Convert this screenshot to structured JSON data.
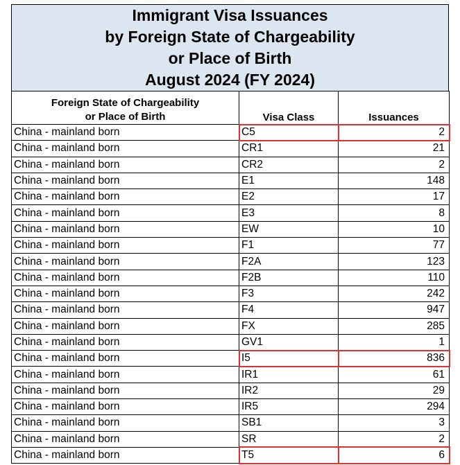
{
  "title": {
    "line1": "Immigrant Visa Issuances",
    "line2": "by Foreign State of Chargeability",
    "line3": "or Place of Birth",
    "line4": "August 2024 (FY 2024)"
  },
  "headers": {
    "country_line1": "Foreign State of Chargeability",
    "country_line2": "or Place of Birth",
    "visa_class": "Visa Class",
    "issuances": "Issuances"
  },
  "highlight_color": "#e03030",
  "rows": [
    {
      "country": "China - mainland born",
      "visa_class": "C5",
      "issuances": "2",
      "highlighted": true
    },
    {
      "country": "China - mainland born",
      "visa_class": "CR1",
      "issuances": "21",
      "highlighted": false
    },
    {
      "country": "China - mainland born",
      "visa_class": "CR2",
      "issuances": "2",
      "highlighted": false
    },
    {
      "country": "China - mainland born",
      "visa_class": "E1",
      "issuances": "148",
      "highlighted": false
    },
    {
      "country": "China - mainland born",
      "visa_class": "E2",
      "issuances": "17",
      "highlighted": false
    },
    {
      "country": "China - mainland born",
      "visa_class": "E3",
      "issuances": "8",
      "highlighted": false
    },
    {
      "country": "China - mainland born",
      "visa_class": "EW",
      "issuances": "10",
      "highlighted": false
    },
    {
      "country": "China - mainland born",
      "visa_class": "F1",
      "issuances": "77",
      "highlighted": false
    },
    {
      "country": "China - mainland born",
      "visa_class": "F2A",
      "issuances": "123",
      "highlighted": false
    },
    {
      "country": "China - mainland born",
      "visa_class": "F2B",
      "issuances": "110",
      "highlighted": false
    },
    {
      "country": "China - mainland born",
      "visa_class": "F3",
      "issuances": "242",
      "highlighted": false
    },
    {
      "country": "China - mainland born",
      "visa_class": "F4",
      "issuances": "947",
      "highlighted": false
    },
    {
      "country": "China - mainland born",
      "visa_class": "FX",
      "issuances": "285",
      "highlighted": false
    },
    {
      "country": "China - mainland born",
      "visa_class": "GV1",
      "issuances": "1",
      "highlighted": false
    },
    {
      "country": "China - mainland born",
      "visa_class": "I5",
      "issuances": "836",
      "highlighted": true
    },
    {
      "country": "China - mainland born",
      "visa_class": "IR1",
      "issuances": "61",
      "highlighted": false
    },
    {
      "country": "China - mainland born",
      "visa_class": "IR2",
      "issuances": "29",
      "highlighted": false
    },
    {
      "country": "China - mainland born",
      "visa_class": "IR5",
      "issuances": "294",
      "highlighted": false
    },
    {
      "country": "China - mainland born",
      "visa_class": "SB1",
      "issuances": "3",
      "highlighted": false
    },
    {
      "country": "China - mainland born",
      "visa_class": "SR",
      "issuances": "2",
      "highlighted": false
    },
    {
      "country": "China - mainland born",
      "visa_class": "T5",
      "issuances": "6",
      "highlighted": true
    }
  ]
}
